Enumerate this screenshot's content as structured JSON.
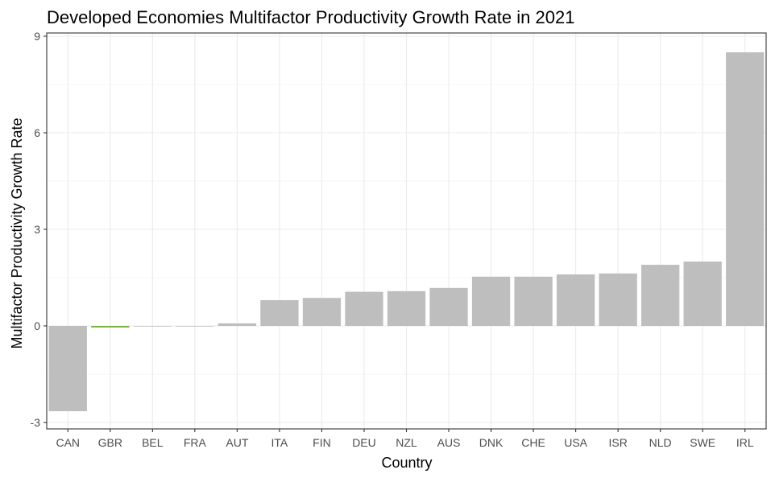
{
  "chart_data": {
    "type": "bar",
    "title": "Developed Economies Multifactor Productivity Growth Rate in 2021",
    "xlabel": "Country",
    "ylabel": "Multifactor Productivity Growth Rate",
    "categories": [
      "CAN",
      "GBR",
      "BEL",
      "FRA",
      "AUT",
      "ITA",
      "FIN",
      "DEU",
      "NZL",
      "AUS",
      "DNK",
      "CHE",
      "USA",
      "ISR",
      "NLD",
      "SWE",
      "IRL"
    ],
    "values": [
      -2.65,
      -0.05,
      -0.02,
      -0.02,
      0.08,
      0.8,
      0.87,
      1.06,
      1.08,
      1.18,
      1.53,
      1.53,
      1.6,
      1.63,
      1.9,
      2.0,
      8.5
    ],
    "highlight": "GBR",
    "ylim": [
      -3.2,
      9.1
    ],
    "yticks": [
      -3,
      0,
      3,
      6,
      9
    ],
    "grid": true,
    "legend": "none",
    "colors": {
      "bar": "#bebebe",
      "highlight": "#7cb342",
      "grid": "#ebebeb",
      "panel_border": "#333333",
      "tick": "#4d4d4d"
    }
  }
}
